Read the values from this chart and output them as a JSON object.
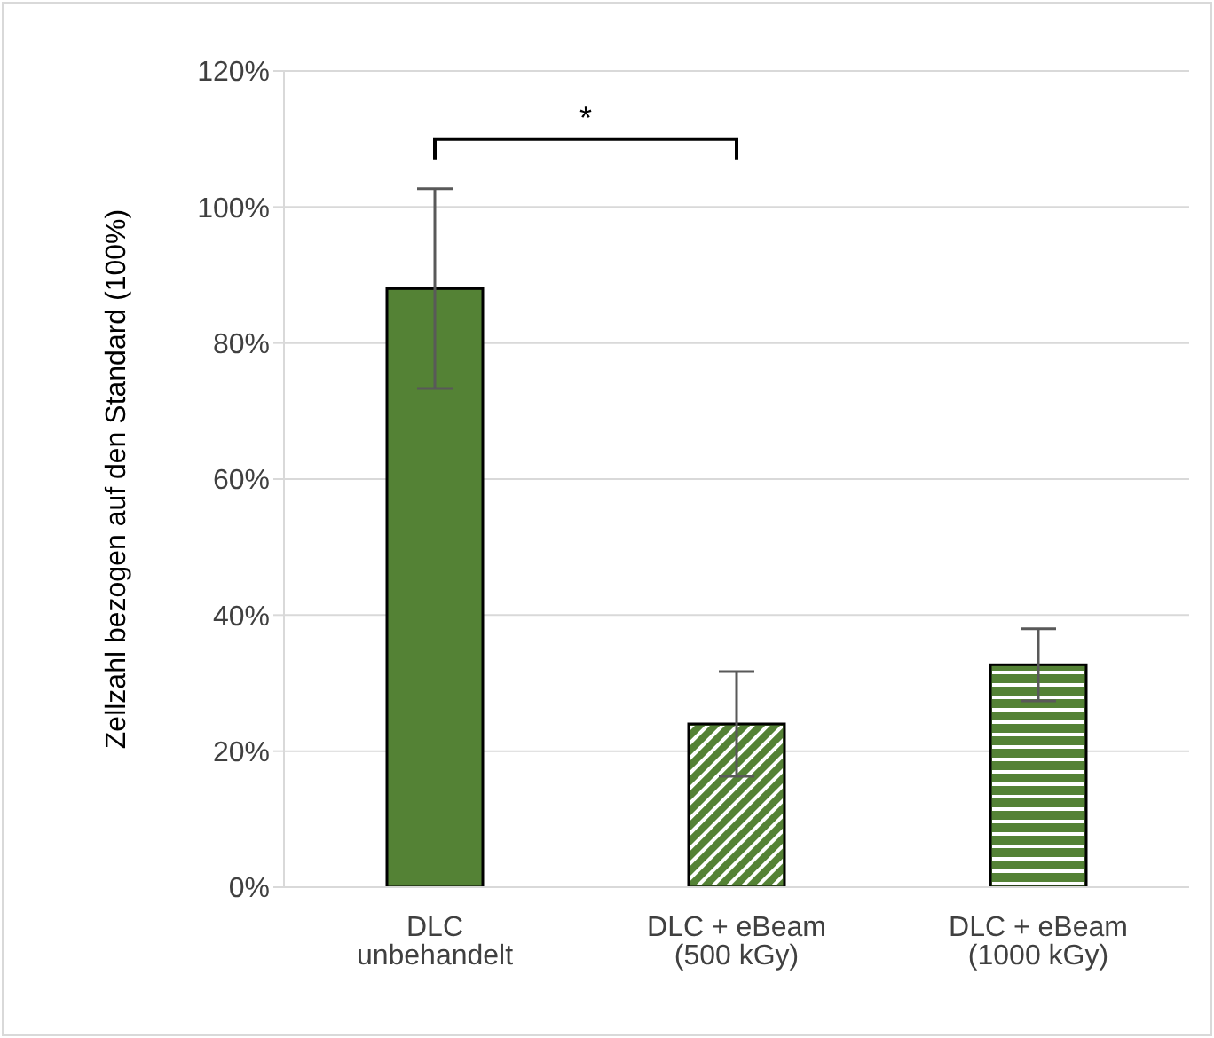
{
  "chart_data": {
    "type": "bar",
    "ylabel": "Zellzahl bezogen auf den Standard (100%)",
    "categories": [
      "DLC unbehandelt",
      "DLC + eBeam (500 kGy)",
      "DLC + eBeam (1000 kGy)"
    ],
    "values": [
      88,
      24,
      32.7
    ],
    "errors": [
      14.7,
      7.7,
      5.3
    ],
    "colors": [
      "#548235",
      "#548235",
      "#548235"
    ],
    "ylim": [
      0,
      120
    ],
    "yticks": [
      {
        "value": 0,
        "label": "0%"
      },
      {
        "value": 20,
        "label": "20%"
      },
      {
        "value": 40,
        "label": "40%"
      },
      {
        "value": 60,
        "label": "60%"
      },
      {
        "value": 80,
        "label": "80%"
      },
      {
        "value": 100,
        "label": "100%"
      },
      {
        "value": 120,
        "label": "120%"
      }
    ],
    "grid": "y",
    "legend": false,
    "annotations": [
      "*"
    ]
  }
}
